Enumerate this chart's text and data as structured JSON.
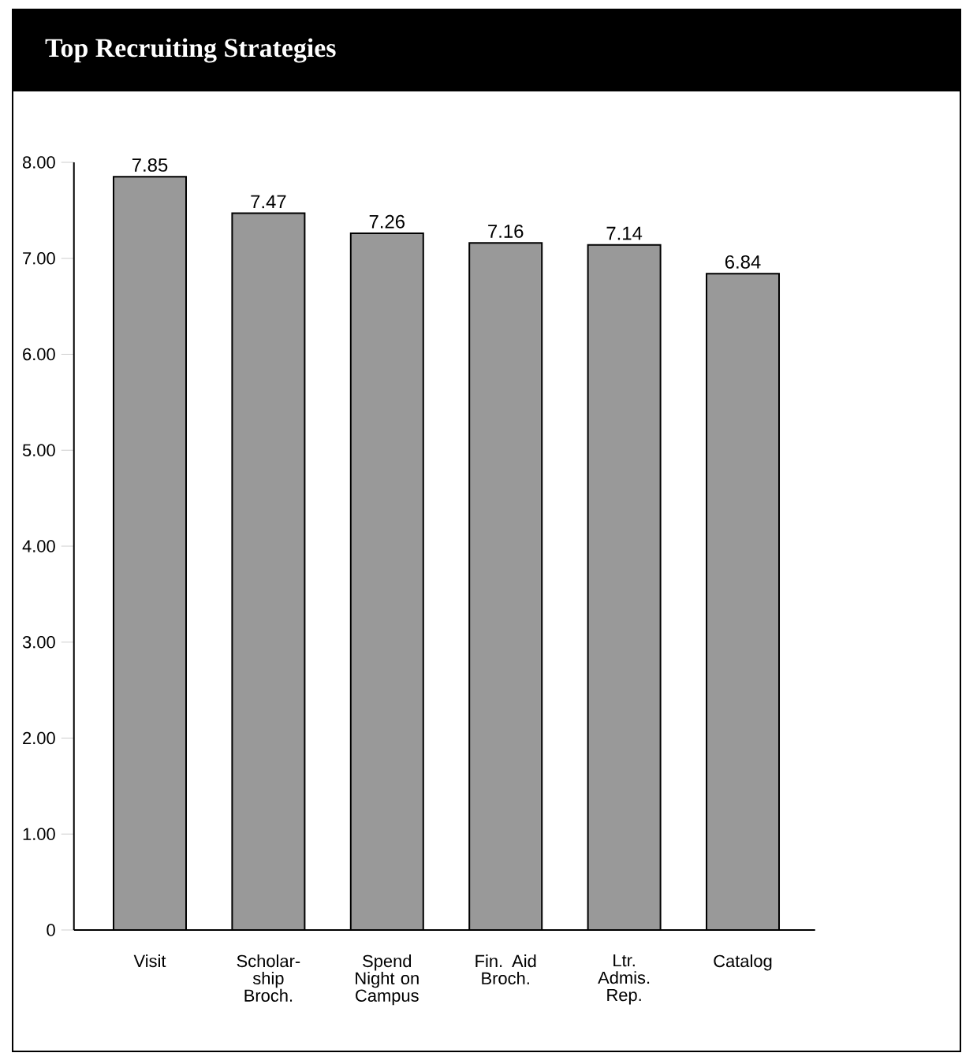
{
  "chart_data": {
    "type": "bar",
    "title": "Top Recruiting Strategies",
    "categories": [
      "Visit",
      "Scholar-ship Broch.",
      "Spend Night on Campus",
      "Fin. Aid Broch.",
      "Ltr. Admis. Rep.",
      "Catalog"
    ],
    "values": [
      7.85,
      7.47,
      7.26,
      7.16,
      7.14,
      6.84
    ],
    "color": "#999999",
    "ylim": [
      0,
      8
    ],
    "yticks": [
      0,
      {
        "value": 1,
        "label": "1.00"
      },
      {
        "value": 2,
        "label": "2.00"
      },
      {
        "value": 3,
        "label": "3.00"
      },
      {
        "value": 4,
        "label": "4.00"
      },
      {
        "value": 5,
        "label": "5.00"
      },
      {
        "value": 6,
        "label": "6.00"
      },
      {
        "value": 7,
        "label": "7.00"
      },
      {
        "value": 8,
        "label": "8.00"
      }
    ],
    "data_labels": true,
    "grid": false
  }
}
